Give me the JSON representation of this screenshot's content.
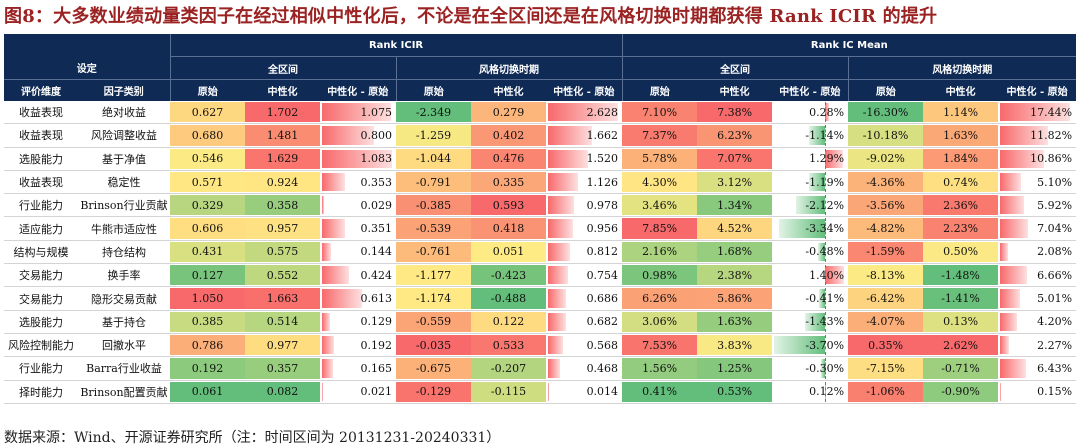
{
  "title": "图8：大多数业绩动量类因子在经过相似中性化后，不论是在全区间还是在风格切换时期都获得 Rank ICIR 的提升",
  "header": {
    "group_icir": "Rank ICIR",
    "group_icmean": "Rank IC Mean",
    "settings": "设定",
    "full_period": "全区间",
    "style_switch": "风格切换时期",
    "eval_dimension": "评价维度",
    "factor_category": "因子类别",
    "raw": "原始",
    "neutralized": "中性化",
    "diff": "中性化 - 原始"
  },
  "colors": {
    "header_bg": "#0f2a55",
    "title": "#9b2222",
    "bar_pos": "#f36a6a",
    "bar_neg": "#5cc07a"
  },
  "chart_data": {
    "type": "table",
    "columns": [
      "全区间 原始",
      "全区间 中性化",
      "全区间 中性化 - 原始",
      "风格切换时期 原始",
      "风格切换时期 中性化",
      "风格切换时期 中性化 - 原始",
      "全区间 原始",
      "全区间 中性化",
      "全区间 中性化 - 原始",
      "风格切换时期 原始",
      "风格切换时期 中性化",
      "风格切换时期 中性化 - 原始"
    ],
    "rows": [
      {
        "dimension": "收益表现",
        "factor": "绝对收益",
        "values": [
          "0.627",
          "1.702",
          "1.075",
          "-2.349",
          "0.279",
          "2.628",
          "7.10%",
          "7.38%",
          "0.28%",
          "-16.30%",
          "1.14%",
          "17.44%"
        ]
      },
      {
        "dimension": "收益表现",
        "factor": "风险调整收益",
        "values": [
          "0.680",
          "1.481",
          "0.800",
          "-1.259",
          "0.402",
          "1.662",
          "7.37%",
          "6.23%",
          "-1.14%",
          "-10.18%",
          "1.63%",
          "11.82%"
        ]
      },
      {
        "dimension": "选股能力",
        "factor": "基于净值",
        "values": [
          "0.546",
          "1.629",
          "1.083",
          "-1.044",
          "0.476",
          "1.520",
          "5.78%",
          "7.07%",
          "1.29%",
          "-9.02%",
          "1.84%",
          "10.86%"
        ]
      },
      {
        "dimension": "收益表现",
        "factor": "稳定性",
        "values": [
          "0.571",
          "0.924",
          "0.353",
          "-0.791",
          "0.335",
          "1.126",
          "4.30%",
          "3.12%",
          "-1.19%",
          "-4.36%",
          "0.74%",
          "5.10%"
        ]
      },
      {
        "dimension": "行业能力",
        "factor": "Brinson行业贡献",
        "values": [
          "0.329",
          "0.358",
          "0.029",
          "-0.385",
          "0.593",
          "0.978",
          "3.46%",
          "1.34%",
          "-2.12%",
          "-3.56%",
          "2.36%",
          "5.92%"
        ]
      },
      {
        "dimension": "适应能力",
        "factor": "牛熊市适应性",
        "values": [
          "0.606",
          "0.957",
          "0.351",
          "-0.539",
          "0.418",
          "0.956",
          "7.85%",
          "4.52%",
          "-3.34%",
          "-4.82%",
          "2.23%",
          "7.04%"
        ]
      },
      {
        "dimension": "结构与规模",
        "factor": "持仓结构",
        "values": [
          "0.431",
          "0.575",
          "0.144",
          "-0.761",
          "0.051",
          "0.812",
          "2.16%",
          "1.68%",
          "-0.48%",
          "-1.59%",
          "0.50%",
          "2.08%"
        ]
      },
      {
        "dimension": "交易能力",
        "factor": "换手率",
        "values": [
          "0.127",
          "0.552",
          "0.424",
          "-1.177",
          "-0.423",
          "0.754",
          "0.98%",
          "2.38%",
          "1.40%",
          "-8.13%",
          "-1.48%",
          "6.66%"
        ]
      },
      {
        "dimension": "交易能力",
        "factor": "隐形交易贡献",
        "values": [
          "1.050",
          "1.663",
          "0.613",
          "-1.174",
          "-0.488",
          "0.686",
          "6.26%",
          "5.86%",
          "-0.41%",
          "-6.42%",
          "-1.41%",
          "5.01%"
        ]
      },
      {
        "dimension": "选股能力",
        "factor": "基于持仓",
        "values": [
          "0.385",
          "0.514",
          "0.129",
          "-0.559",
          "0.122",
          "0.682",
          "3.06%",
          "1.63%",
          "-1.43%",
          "-4.07%",
          "0.13%",
          "4.20%"
        ]
      },
      {
        "dimension": "风险控制能力",
        "factor": "回撤水平",
        "values": [
          "0.786",
          "0.977",
          "0.192",
          "-0.035",
          "0.533",
          "0.568",
          "7.53%",
          "3.83%",
          "-3.70%",
          "0.35%",
          "2.62%",
          "2.27%"
        ]
      },
      {
        "dimension": "行业能力",
        "factor": "Barra行业收益",
        "values": [
          "0.192",
          "0.357",
          "0.165",
          "-0.675",
          "-0.207",
          "0.468",
          "1.56%",
          "1.25%",
          "-0.30%",
          "-7.15%",
          "-0.71%",
          "6.43%"
        ]
      },
      {
        "dimension": "择时能力",
        "factor": "Brinson配置贡献",
        "values": [
          "0.061",
          "0.082",
          "0.021",
          "-0.129",
          "-0.115",
          "0.014",
          "0.41%",
          "0.53%",
          "0.12%",
          "-1.06%",
          "-0.90%",
          "0.15%"
        ]
      }
    ]
  },
  "footer": "数据来源：Wind、开源证券研究所（注：时间区间为 20131231-20240331）"
}
